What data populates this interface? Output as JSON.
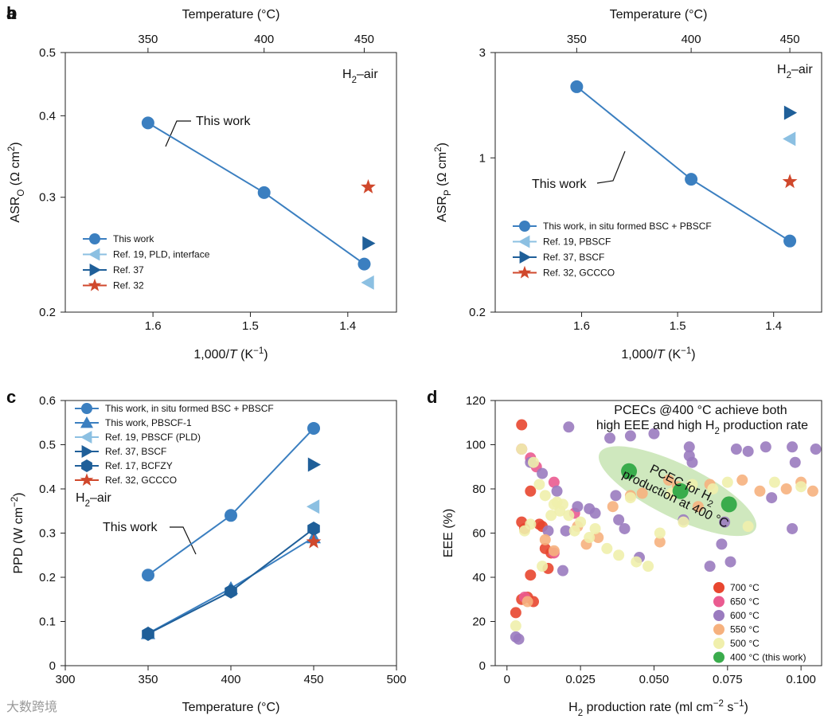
{
  "watermark": "大数跨境",
  "colors": {
    "this_work": "#3b7fc0",
    "ref19": "#8cc0e2",
    "ref37": "#1f5f99",
    "ref32": "#d0482c",
    "ref17": "#1f5f99",
    "t700": "#e8462f",
    "t650": "#ea5b90",
    "t600": "#9a7bbf",
    "t550": "#f6b17e",
    "t500": "#f0efac",
    "t400": "#3aac4c",
    "ellipse": "#bfe0a8",
    "axis": "#222222"
  },
  "chart_data": [
    {
      "panel": "a",
      "type": "line",
      "top_axis": {
        "label": "Temperature (°C)",
        "ticks": [
          "350",
          "400",
          "450"
        ],
        "tick_x": [
          1.6051,
          1.4859,
          1.3831
        ]
      },
      "xlabel": "1,000/T (K⁻¹)",
      "ylabel": "ASR_O (Ω cm²)",
      "xlim": [
        1.69,
        1.35
      ],
      "ylim": [
        0.2,
        0.5
      ],
      "yscale": "log",
      "xticks": [
        "1.6",
        "1.5",
        "1.4"
      ],
      "yticks": [
        "0.2",
        "0.3",
        "0.4",
        "0.5"
      ],
      "annotation_atmos": "H₂–air",
      "annotation_line": "This work",
      "series": [
        {
          "name": "This work",
          "marker": "circle",
          "color": "this_work",
          "line": true,
          "x": [
            1.6051,
            1.4859,
            1.3831
          ],
          "y": [
            0.39,
            0.305,
            0.237
          ]
        },
        {
          "name": "Ref. 19, PLD, interface",
          "marker": "tri-left",
          "color": "ref19",
          "line": false,
          "x": [
            1.379
          ],
          "y": [
            0.222
          ]
        },
        {
          "name": "Ref. 37",
          "marker": "tri-right",
          "color": "ref37",
          "line": false,
          "x": [
            1.379
          ],
          "y": [
            0.255
          ]
        },
        {
          "name": "Ref. 32",
          "marker": "star",
          "color": "ref32",
          "line": false,
          "x": [
            1.379
          ],
          "y": [
            0.311
          ]
        }
      ]
    },
    {
      "panel": "b",
      "type": "line",
      "top_axis": {
        "label": "Temperature (°C)",
        "ticks": [
          "350",
          "400",
          "450"
        ],
        "tick_x": [
          1.6051,
          1.4859,
          1.3831
        ]
      },
      "xlabel": "1,000/T (K⁻¹)",
      "ylabel": "ASR_P (Ω cm²)",
      "xlim": [
        1.69,
        1.35
      ],
      "ylim": [
        0.2,
        3
      ],
      "yscale": "log",
      "xticks": [
        "1.6",
        "1.5",
        "1.4"
      ],
      "yticks": [
        "0.2",
        "1",
        "3"
      ],
      "annotation_atmos": "H₂–air",
      "annotation_line": "This work",
      "series": [
        {
          "name": "This work, in situ formed BSC + PBSCF",
          "marker": "circle",
          "color": "this_work",
          "line": true,
          "x": [
            1.6051,
            1.4859,
            1.3831
          ],
          "y": [
            2.1,
            0.8,
            0.42
          ]
        },
        {
          "name": "Ref. 19, PBSCF",
          "marker": "tri-left",
          "color": "ref19",
          "line": false,
          "x": [
            1.3831
          ],
          "y": [
            1.22
          ]
        },
        {
          "name": "Ref. 37, BSCF",
          "marker": "tri-right",
          "color": "ref37",
          "line": false,
          "x": [
            1.3831
          ],
          "y": [
            1.6
          ]
        },
        {
          "name": "Ref. 32, GCCCO",
          "marker": "star",
          "color": "ref32",
          "line": false,
          "x": [
            1.3831
          ],
          "y": [
            0.78
          ]
        }
      ]
    },
    {
      "panel": "c",
      "type": "line",
      "xlabel": "Temperature (°C)",
      "ylabel": "PPD (W cm⁻²)",
      "xlim": [
        300,
        500
      ],
      "ylim": [
        0,
        0.6
      ],
      "xticks": [
        "300",
        "350",
        "400",
        "450",
        "500"
      ],
      "yticks": [
        "0",
        "0.1",
        "0.2",
        "0.3",
        "0.4",
        "0.5",
        "0.6"
      ],
      "annotation_atmos": "H₂–air",
      "annotation_line": "This work",
      "series": [
        {
          "name": "This work, in situ formed BSC + PBSCF",
          "marker": "circle",
          "color": "this_work",
          "line": true,
          "x": [
            350,
            400,
            450
          ],
          "y": [
            0.205,
            0.34,
            0.537
          ]
        },
        {
          "name": "This work, PBSCF-1",
          "marker": "tri-up",
          "color": "this_work",
          "line": true,
          "x": [
            350,
            400,
            450
          ],
          "y": [
            0.073,
            0.175,
            0.29
          ]
        },
        {
          "name": "Ref. 19, PBSCF (PLD)",
          "marker": "tri-left",
          "color": "ref19",
          "line": false,
          "x": [
            450
          ],
          "y": [
            0.36
          ]
        },
        {
          "name": "Ref. 37, BSCF",
          "marker": "tri-right",
          "color": "ref37",
          "line": false,
          "x": [
            450
          ],
          "y": [
            0.455
          ]
        },
        {
          "name": "Ref. 17, BCFZY",
          "marker": "hexagon",
          "color": "ref17",
          "line": true,
          "x": [
            350,
            400,
            450
          ],
          "y": [
            0.072,
            0.168,
            0.31
          ]
        },
        {
          "name": "Ref. 32, GCCCO",
          "marker": "star",
          "color": "ref32",
          "line": false,
          "x": [
            450
          ],
          "y": [
            0.28
          ]
        }
      ]
    },
    {
      "panel": "d",
      "type": "scatter",
      "xlabel": "H₂ production rate (ml cm⁻² s⁻¹)",
      "ylabel": "EEE (%)",
      "xlim": [
        -0.004,
        0.107
      ],
      "ylim": [
        0,
        120
      ],
      "xticks": [
        "0",
        "0.025",
        "0.050",
        "0.075",
        "0.100"
      ],
      "yticks": [
        "0",
        "20",
        "40",
        "60",
        "80",
        "100",
        "120"
      ],
      "title": "PCECs @400 °C achieve both high EEE and high H₂ production rate",
      "ellipse_label": "PCEC for H₂ production at 400 °C",
      "ellipse": {
        "cx": 0.058,
        "cy": 79,
        "rx": 0.0295,
        "ry": 12,
        "angle": 26
      },
      "series": [
        {
          "name": "700 °C",
          "color": "t700",
          "points": [
            [
              0.005,
              109
            ],
            [
              0.005,
              65
            ],
            [
              0.006,
              62
            ],
            [
              0.008,
              79
            ],
            [
              0.011,
              64
            ],
            [
              0.012,
              63
            ],
            [
              0.013,
              53
            ],
            [
              0.014,
              44
            ],
            [
              0.005,
              30
            ],
            [
              0.007,
              31
            ],
            [
              0.009,
              29
            ],
            [
              0.003,
              24
            ],
            [
              0.008,
              41
            ],
            [
              0.015,
              51
            ]
          ]
        },
        {
          "name": "650 °C",
          "color": "t650",
          "points": [
            [
              0.005,
              98
            ],
            [
              0.008,
              94
            ],
            [
              0.01,
              90
            ],
            [
              0.016,
              83
            ],
            [
              0.023,
              69
            ],
            [
              0.016,
              51
            ],
            [
              0.006,
              31
            ]
          ]
        },
        {
          "name": "600 °C",
          "color": "t600",
          "points": [
            [
              0.021,
              108
            ],
            [
              0.035,
              103
            ],
            [
              0.042,
              104
            ],
            [
              0.05,
              105
            ],
            [
              0.062,
              99
            ],
            [
              0.062,
              95
            ],
            [
              0.063,
              92
            ],
            [
              0.078,
              98
            ],
            [
              0.082,
              97
            ],
            [
              0.088,
              99
            ],
            [
              0.097,
              99
            ],
            [
              0.098,
              92
            ],
            [
              0.105,
              98
            ],
            [
              0.008,
              92
            ],
            [
              0.012,
              87
            ],
            [
              0.017,
              79
            ],
            [
              0.024,
              72
            ],
            [
              0.028,
              71
            ],
            [
              0.03,
              69
            ],
            [
              0.037,
              77
            ],
            [
              0.04,
              62
            ],
            [
              0.06,
              66
            ],
            [
              0.069,
              45
            ],
            [
              0.073,
              55
            ],
            [
              0.076,
              47
            ],
            [
              0.09,
              76
            ],
            [
              0.097,
              62
            ],
            [
              0.074,
              65
            ],
            [
              0.02,
              61
            ],
            [
              0.019,
              43
            ],
            [
              0.038,
              66
            ],
            [
              0.045,
              49
            ],
            [
              0.003,
              13
            ],
            [
              0.004,
              12
            ],
            [
              0.014,
              61
            ]
          ]
        },
        {
          "name": "550 °C",
          "color": "t550",
          "points": [
            [
              0.024,
              63
            ],
            [
              0.027,
              55
            ],
            [
              0.036,
              72
            ],
            [
              0.046,
              78
            ],
            [
              0.052,
              56
            ],
            [
              0.058,
              81
            ],
            [
              0.069,
              82
            ],
            [
              0.08,
              84
            ],
            [
              0.086,
              79
            ],
            [
              0.095,
              80
            ],
            [
              0.1,
              83
            ],
            [
              0.104,
              79
            ],
            [
              0.065,
              72
            ],
            [
              0.031,
              58
            ],
            [
              0.055,
              84
            ],
            [
              0.016,
              52
            ],
            [
              0.007,
              29
            ],
            [
              0.013,
              57
            ],
            [
              0.042,
              77
            ]
          ]
        },
        {
          "name": "500 °C",
          "color": "t500",
          "points": [
            [
              0.005,
              98
            ],
            [
              0.009,
              92
            ],
            [
              0.011,
              82
            ],
            [
              0.013,
              77
            ],
            [
              0.016,
              73
            ],
            [
              0.017,
              74
            ],
            [
              0.018,
              70
            ],
            [
              0.019,
              73
            ],
            [
              0.021,
              68
            ],
            [
              0.023,
              61
            ],
            [
              0.025,
              65
            ],
            [
              0.028,
              58
            ],
            [
              0.03,
              62
            ],
            [
              0.034,
              53
            ],
            [
              0.038,
              50
            ],
            [
              0.042,
              76
            ],
            [
              0.044,
              47
            ],
            [
              0.048,
              45
            ],
            [
              0.052,
              60
            ],
            [
              0.056,
              78
            ],
            [
              0.06,
              65
            ],
            [
              0.063,
              82
            ],
            [
              0.07,
              80
            ],
            [
              0.075,
              83
            ],
            [
              0.082,
              63
            ],
            [
              0.091,
              83
            ],
            [
              0.1,
              81
            ],
            [
              0.006,
              61
            ],
            [
              0.008,
              64
            ],
            [
              0.012,
              45
            ],
            [
              0.003,
              18
            ],
            [
              0.015,
              68
            ]
          ]
        },
        {
          "name": "400 °C (this work)",
          "color": "t400",
          "points": [
            [
              0.0415,
              88
            ],
            [
              0.059,
              79
            ],
            [
              0.0755,
              73
            ]
          ]
        }
      ]
    }
  ]
}
